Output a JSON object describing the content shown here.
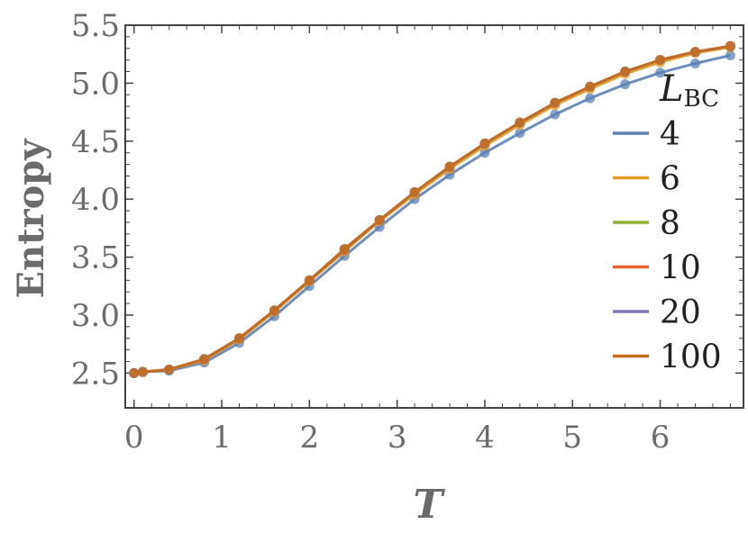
{
  "chart_data": {
    "type": "line",
    "xlabel": "T",
    "ylabel": "Entropy",
    "xlim": [
      -0.1,
      6.95
    ],
    "ylim": [
      2.2,
      5.5
    ],
    "xticks": [
      "0",
      "1",
      "2",
      "3",
      "4",
      "5",
      "6"
    ],
    "yticks": [
      "2.5",
      "3.0",
      "3.5",
      "4.0",
      "4.5",
      "5.0",
      "5.5"
    ],
    "legend": {
      "title_main": "L",
      "title_sub": "BC",
      "placement": "right"
    },
    "x": [
      0.0,
      0.1,
      0.4,
      0.8,
      1.2,
      1.6,
      2.0,
      2.4,
      2.8,
      3.2,
      3.6,
      4.0,
      4.4,
      4.8,
      5.2,
      5.6,
      6.0,
      6.4,
      6.8
    ],
    "series": [
      {
        "name": "4",
        "color": "#5e81b5",
        "values": [
          2.5,
          2.51,
          2.52,
          2.59,
          2.76,
          2.99,
          3.25,
          3.51,
          3.76,
          4.0,
          4.21,
          4.4,
          4.57,
          4.73,
          4.87,
          4.99,
          5.09,
          5.17,
          5.24
        ]
      },
      {
        "name": "6",
        "color": "#e19c24",
        "values": [
          2.5,
          2.51,
          2.53,
          2.61,
          2.79,
          3.03,
          3.29,
          3.55,
          3.81,
          4.04,
          4.26,
          4.46,
          4.64,
          4.81,
          4.95,
          5.08,
          5.18,
          5.26,
          5.31
        ]
      },
      {
        "name": "8",
        "color": "#8fb032",
        "values": [
          2.5,
          2.51,
          2.53,
          2.62,
          2.8,
          3.04,
          3.3,
          3.56,
          3.82,
          4.06,
          4.28,
          4.48,
          4.66,
          4.83,
          4.97,
          5.1,
          5.2,
          5.27,
          5.32
        ]
      },
      {
        "name": "10",
        "color": "#eb6235",
        "values": [
          2.5,
          2.51,
          2.53,
          2.62,
          2.8,
          3.04,
          3.3,
          3.56,
          3.82,
          4.06,
          4.28,
          4.48,
          4.66,
          4.83,
          4.97,
          5.1,
          5.2,
          5.27,
          5.32
        ]
      },
      {
        "name": "20",
        "color": "#8778b3",
        "values": [
          2.5,
          2.51,
          2.53,
          2.62,
          2.8,
          3.04,
          3.3,
          3.57,
          3.82,
          4.06,
          4.28,
          4.48,
          4.66,
          4.83,
          4.97,
          5.1,
          5.2,
          5.27,
          5.32
        ]
      },
      {
        "name": "100",
        "color": "#c56e1a",
        "values": [
          2.5,
          2.51,
          2.53,
          2.62,
          2.8,
          3.04,
          3.3,
          3.57,
          3.82,
          4.06,
          4.28,
          4.48,
          4.66,
          4.83,
          4.97,
          5.1,
          5.2,
          5.27,
          5.32
        ]
      }
    ]
  }
}
